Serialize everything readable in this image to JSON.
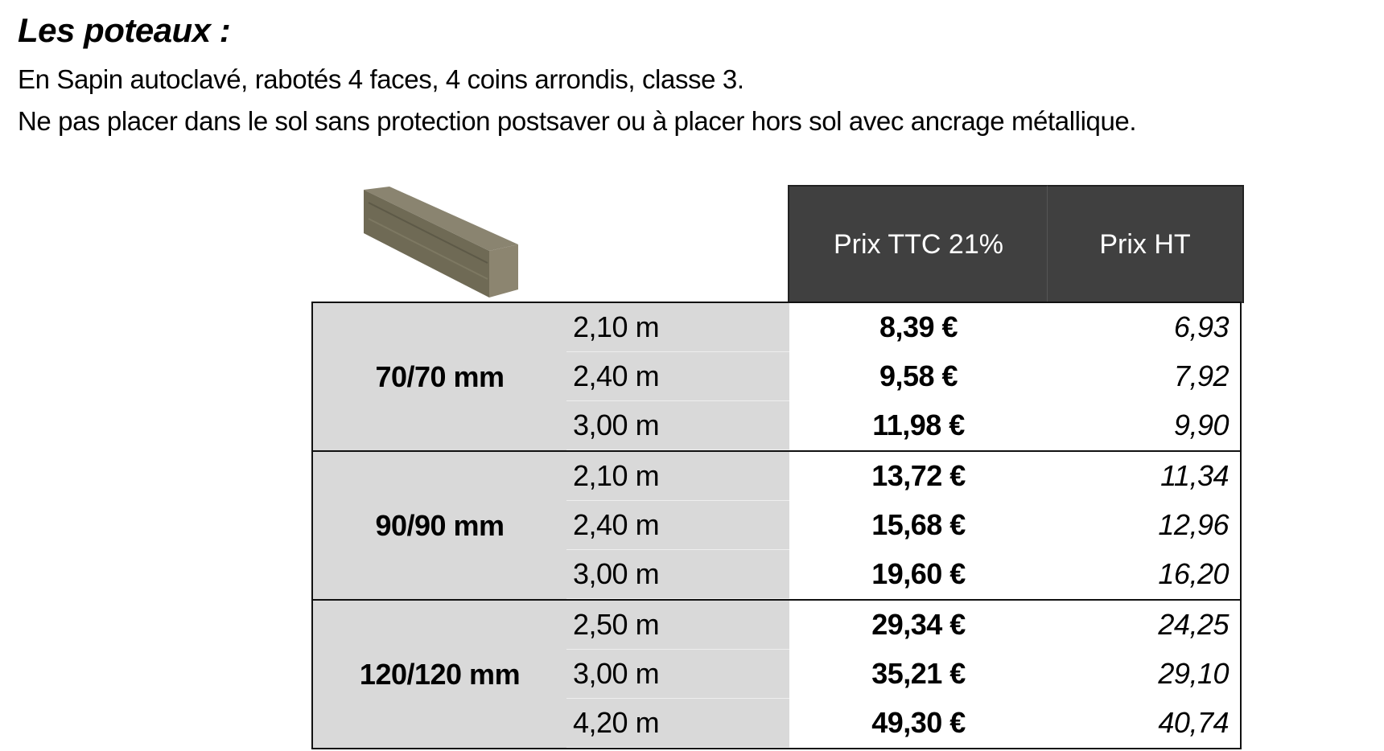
{
  "title": "Les poteaux :",
  "lines": [
    "En Sapin autoclavé, rabotés 4 faces, 4 coins arrondis, classe 3.",
    "Ne pas placer dans le sol sans protection postsaver ou à placer hors sol avec ancrage métallique."
  ],
  "headers": {
    "ttc": "Prix TTC 21%",
    "ht": "Prix HT"
  },
  "groups": [
    {
      "size": "70/70 mm",
      "rows": [
        {
          "len": "2,10 m",
          "ttc": "8,39 €",
          "ht": "6,93"
        },
        {
          "len": "2,40 m",
          "ttc": "9,58 €",
          "ht": "7,92"
        },
        {
          "len": "3,00 m",
          "ttc": "11,98 €",
          "ht": "9,90"
        }
      ]
    },
    {
      "size": "90/90 mm",
      "rows": [
        {
          "len": "2,10 m",
          "ttc": "13,72 €",
          "ht": "11,34"
        },
        {
          "len": "2,40 m",
          "ttc": "15,68 €",
          "ht": "12,96"
        },
        {
          "len": "3,00 m",
          "ttc": "19,60 €",
          "ht": "16,20"
        }
      ]
    },
    {
      "size": "120/120 mm",
      "rows": [
        {
          "len": "2,50 m",
          "ttc": "29,34 €",
          "ht": "24,25"
        },
        {
          "len": "3,00 m",
          "ttc": "35,21 €",
          "ht": "29,10"
        },
        {
          "len": "4,20 m",
          "ttc": "49,30 €",
          "ht": "40,74"
        }
      ]
    }
  ]
}
